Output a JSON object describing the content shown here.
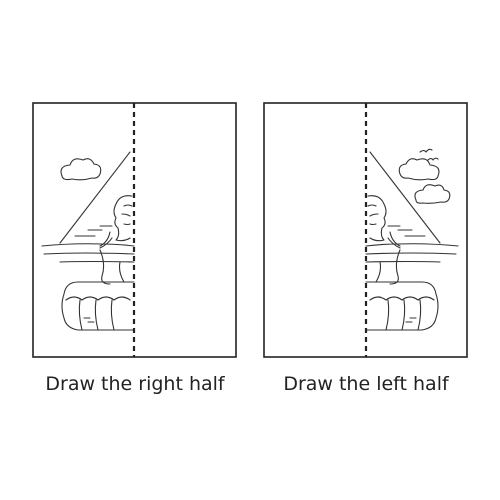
{
  "panels": [
    {
      "caption": "Draw the right half"
    },
    {
      "caption": "Draw the left half"
    }
  ]
}
